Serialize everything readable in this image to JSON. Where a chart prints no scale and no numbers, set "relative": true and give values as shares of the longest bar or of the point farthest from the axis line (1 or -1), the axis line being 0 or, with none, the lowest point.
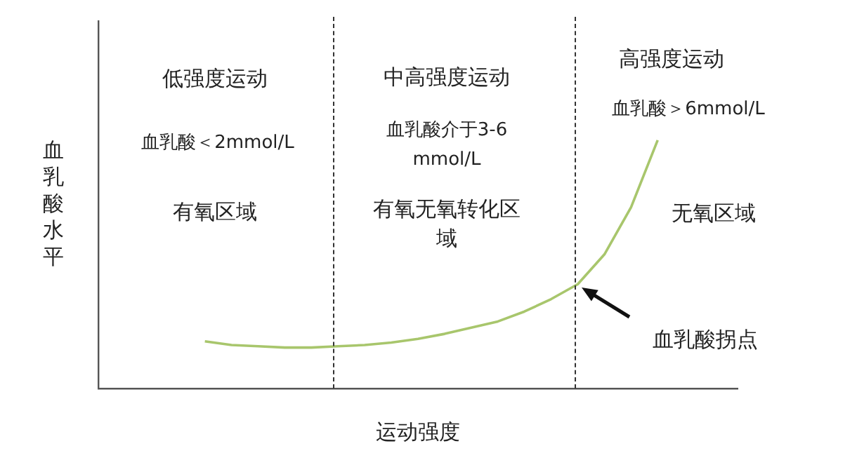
{
  "chart_data": {
    "type": "line",
    "relative": true,
    "xlabel": "运动强度",
    "ylabel": "血乳酸水平",
    "categories": [
      null,
      null,
      null,
      null,
      null,
      null,
      null,
      null,
      null,
      null,
      null,
      null,
      null,
      null,
      null,
      null,
      null,
      null,
      null,
      null,
      null,
      null,
      null,
      null,
      null
    ],
    "tick_labels": false,
    "series": [
      {
        "color": "#a8c66c",
        "values": [
          null,
          null,
          null,
          null,
          0.19,
          0.175,
          0.17,
          0.165,
          0.165,
          0.17,
          0.175,
          0.185,
          0.2,
          0.22,
          0.245,
          0.27,
          0.31,
          0.36,
          0.42,
          0.54,
          0.73,
          1,
          null,
          null,
          null
        ]
      }
    ],
    "annotations": [
      "低强度运动",
      "血乳酸＜2mmol/L",
      "有氧区域",
      "中高强度运动",
      "血乳酸介于3-6 mmol/L",
      "有氧无氧转化区域",
      "高强度运动",
      "血乳酸＞6mmol/L",
      "无氧区域",
      "血乳酸拐点"
    ]
  }
}
